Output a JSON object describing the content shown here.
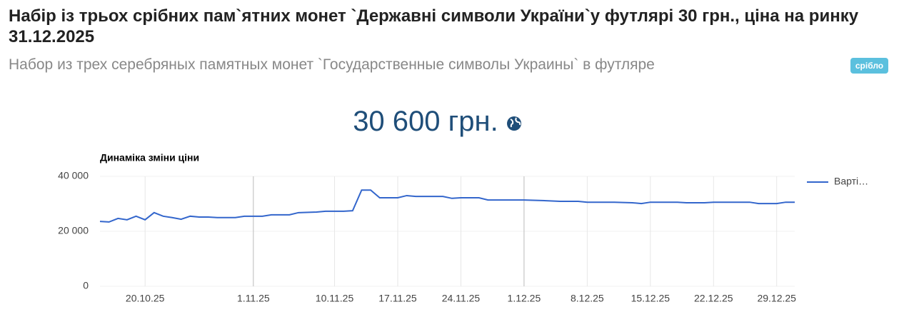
{
  "header": {
    "title": "Набір із трьох срібних пам`ятних монет `Державні символи України`у футлярі 30 грн., ціна на ринку 31.12.2025",
    "subtitle": "Набор из трех серебряных памятных монет `Государственные символы Украины` в футляре",
    "badge": "срібло",
    "price": "30 600 грн."
  },
  "chart_data": {
    "type": "line",
    "title": "Динаміка зміни ціни",
    "x": [
      "15.10.25",
      "16.10.25",
      "17.10.25",
      "18.10.25",
      "19.10.25",
      "20.10.25",
      "21.10.25",
      "22.10.25",
      "23.10.25",
      "24.10.25",
      "25.10.25",
      "26.10.25",
      "27.10.25",
      "28.10.25",
      "30.10.25",
      "31.10.25",
      "2.11.25",
      "3.11.25",
      "5.11.25",
      "6.11.25",
      "8.11.25",
      "9.11.25",
      "11.11.25",
      "12.11.25",
      "13.11.25",
      "14.11.25",
      "15.11.25",
      "17.11.25",
      "18.11.25",
      "19.11.25",
      "22.11.25",
      "23.11.25",
      "24.11.25",
      "26.11.25",
      "27.11.25",
      "1.12.25",
      "3.12.25",
      "5.12.25",
      "7.12.25",
      "8.12.25",
      "11.12.25",
      "13.12.25",
      "14.12.25",
      "15.12.25",
      "18.12.25",
      "19.12.25",
      "21.12.25",
      "22.12.25",
      "26.12.25",
      "27.12.25",
      "29.12.25",
      "30.12.25",
      "31.12.25"
    ],
    "series": [
      {
        "name": "Варті…",
        "color": "#3366cc",
        "values": [
          23600,
          23400,
          24700,
          24200,
          25500,
          24200,
          26800,
          25500,
          25000,
          24400,
          25500,
          25200,
          25200,
          25000,
          25000,
          25500,
          25500,
          26000,
          26000,
          26800,
          27000,
          27300,
          27300,
          27500,
          35000,
          35000,
          32200,
          32200,
          33000,
          32700,
          32700,
          32000,
          32200,
          32200,
          31400,
          31400,
          31200,
          30900,
          30900,
          30600,
          30600,
          30400,
          30100,
          30600,
          30600,
          30400,
          30400,
          30600,
          30600,
          30100,
          30100,
          30600,
          30600
        ]
      }
    ],
    "xlim": [
      "15.10.25",
      "31.12.25"
    ],
    "xticks": [
      "20.10.25",
      "1.11.25",
      "10.11.25",
      "17.11.25",
      "24.11.25",
      "1.12.25",
      "8.12.25",
      "15.12.25",
      "22.12.25",
      "29.12.25"
    ],
    "ylim": [
      0,
      40000
    ],
    "yticks": [
      0,
      {
        "value": 20000,
        "label": "20 000"
      },
      {
        "value": 40000,
        "label": "40 000"
      }
    ],
    "grid": "x",
    "legend": "right"
  }
}
